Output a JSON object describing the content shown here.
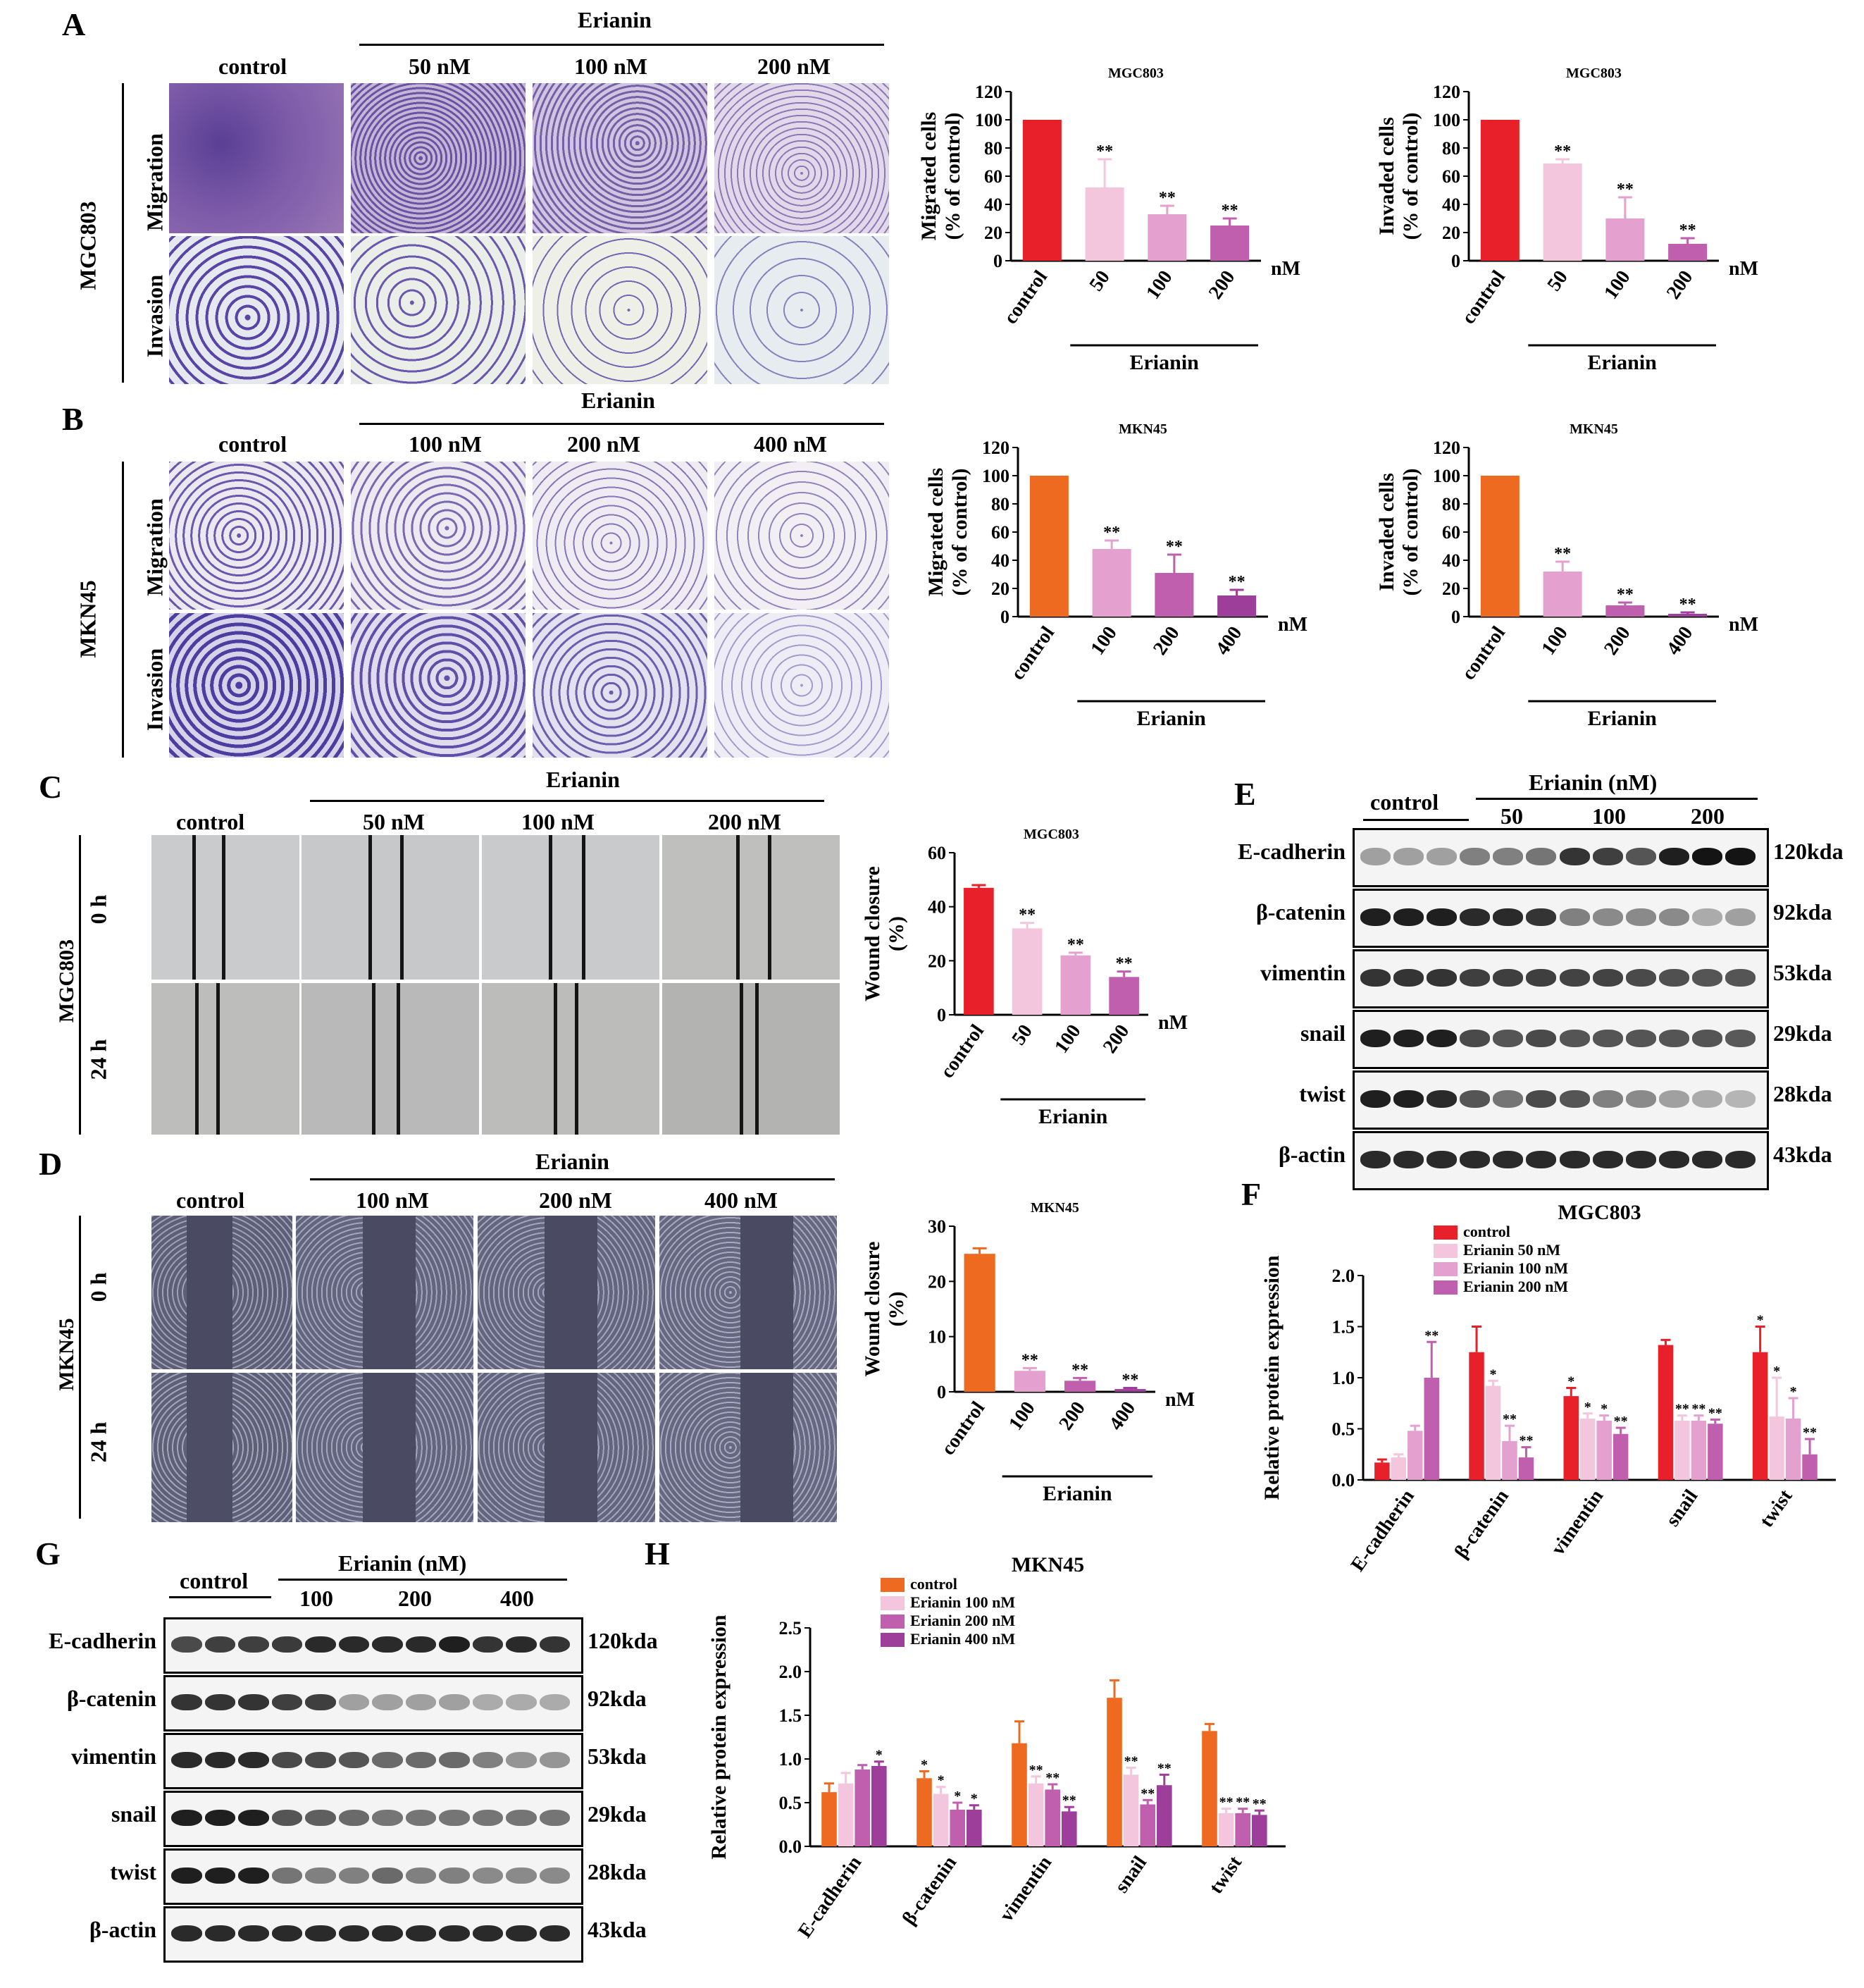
{
  "panels": {
    "A": "A",
    "B": "B",
    "C": "C",
    "D": "D",
    "E": "E",
    "F": "F",
    "G": "G",
    "H": "H"
  },
  "common": {
    "erianin": "Erianin",
    "control": "control",
    "nM": "nM",
    "migration": "Migration",
    "invasion": "Invasion",
    "h0": "0 h",
    "h24": "24 h",
    "erianin_nM": "Erianin (nM)"
  },
  "cells": {
    "mgc": "MGC803",
    "mkn": "MKN45"
  },
  "doses_A": [
    "50 nM",
    "100 nM",
    "200 nM"
  ],
  "doses_B": [
    "100 nM",
    "200 nM",
    "400 nM"
  ],
  "blots": {
    "proteins": [
      "E-cadherin",
      "β-catenin",
      "vimentin",
      "snail",
      "twist",
      "β-actin"
    ],
    "sizes": [
      "120kda",
      "92kda",
      "53kda",
      "29kda",
      "28kda",
      "43kda"
    ],
    "E_doses": [
      "50",
      "100",
      "200"
    ],
    "G_doses": [
      "100",
      "200",
      "400"
    ]
  },
  "colors": {
    "red": "#e8202a",
    "orange": "#ef6a21",
    "pink1": "#f3c6de",
    "pink2": "#e4a0cf",
    "pink3": "#c05fae",
    "purple": "#9c3e9a"
  },
  "chart_data": [
    {
      "id": "A-migration",
      "type": "bar",
      "title": "MGC803",
      "ylabel": "Migrated cells (% of control)",
      "categories": [
        "control",
        "50",
        "100",
        "200"
      ],
      "values": [
        100,
        52,
        33,
        25
      ],
      "errors": [
        0,
        20,
        6,
        5
      ],
      "sig": [
        "",
        "**",
        "**",
        "**"
      ],
      "ylim": [
        0,
        120
      ],
      "yticks": [
        0,
        20,
        40,
        60,
        80,
        100,
        120
      ],
      "xgroup": "Erianin",
      "unit": "nM",
      "colors": [
        "#e8202a",
        "#f3c6de",
        "#e4a0cf",
        "#c05fae"
      ]
    },
    {
      "id": "A-invasion",
      "type": "bar",
      "title": "MGC803",
      "ylabel": "Invaded cells (% of control)",
      "categories": [
        "control",
        "50",
        "100",
        "200"
      ],
      "values": [
        100,
        69,
        30,
        12
      ],
      "errors": [
        0,
        3,
        15,
        4
      ],
      "sig": [
        "",
        "**",
        "**",
        "**"
      ],
      "ylim": [
        0,
        120
      ],
      "yticks": [
        0,
        20,
        40,
        60,
        80,
        100,
        120
      ],
      "xgroup": "Erianin",
      "unit": "nM",
      "colors": [
        "#e8202a",
        "#f3c6de",
        "#e4a0cf",
        "#c05fae"
      ]
    },
    {
      "id": "B-migration",
      "type": "bar",
      "title": "MKN45",
      "ylabel": "Migrated cells (% of control)",
      "categories": [
        "control",
        "100",
        "200",
        "400"
      ],
      "values": [
        100,
        48,
        31,
        15
      ],
      "errors": [
        0,
        6,
        13,
        4
      ],
      "sig": [
        "",
        "**",
        "**",
        "**"
      ],
      "ylim": [
        0,
        120
      ],
      "yticks": [
        0,
        20,
        40,
        60,
        80,
        100,
        120
      ],
      "xgroup": "Erianin",
      "unit": "nM",
      "colors": [
        "#ef6a21",
        "#e4a0cf",
        "#c05fae",
        "#9c3e9a"
      ]
    },
    {
      "id": "B-invasion",
      "type": "bar",
      "title": "MKN45",
      "ylabel": "Invaded cells (% of control)",
      "categories": [
        "control",
        "100",
        "200",
        "400"
      ],
      "values": [
        100,
        32,
        8,
        2
      ],
      "errors": [
        0,
        7,
        2,
        1
      ],
      "sig": [
        "",
        "**",
        "**",
        "**"
      ],
      "ylim": [
        0,
        120
      ],
      "yticks": [
        0,
        20,
        40,
        60,
        80,
        100,
        120
      ],
      "xgroup": "Erianin",
      "unit": "nM",
      "colors": [
        "#ef6a21",
        "#e4a0cf",
        "#c05fae",
        "#9c3e9a"
      ]
    },
    {
      "id": "C-wound",
      "type": "bar",
      "title": "MGC803",
      "ylabel": "Wound closure (%)",
      "categories": [
        "control",
        "50",
        "100",
        "200"
      ],
      "values": [
        47,
        32,
        22,
        14
      ],
      "errors": [
        1,
        2,
        1,
        2
      ],
      "sig": [
        "",
        "**",
        "**",
        "**"
      ],
      "ylim": [
        0,
        60
      ],
      "yticks": [
        0,
        20,
        40,
        60
      ],
      "xgroup": "Erianin",
      "unit": "nM",
      "colors": [
        "#e8202a",
        "#f3c6de",
        "#e4a0cf",
        "#c05fae"
      ]
    },
    {
      "id": "D-wound",
      "type": "bar",
      "title": "MKN45",
      "ylabel": "Wound closure (%)",
      "categories": [
        "control",
        "100",
        "200",
        "400"
      ],
      "values": [
        25,
        3.8,
        2,
        0.5
      ],
      "errors": [
        1,
        0.5,
        0.5,
        0.2
      ],
      "sig": [
        "",
        "**",
        "**",
        "**"
      ],
      "ylim": [
        0,
        30
      ],
      "yticks": [
        0,
        10,
        20,
        30
      ],
      "xgroup": "Erianin",
      "unit": "nM",
      "colors": [
        "#ef6a21",
        "#e4a0cf",
        "#c05fae",
        "#9c3e9a"
      ]
    },
    {
      "id": "F-expr",
      "type": "grouped-bar",
      "title": "MGC803",
      "ylabel": "Relative protein expression",
      "categories": [
        "E-cadherin",
        "β-catenin",
        "vimentin",
        "snail",
        "twist"
      ],
      "ylim": [
        0,
        2.0
      ],
      "yticks": [
        0.0,
        0.5,
        1.0,
        1.5,
        2.0
      ],
      "series": [
        {
          "name": "control",
          "color": "#e8202a",
          "values": [
            0.17,
            1.25,
            0.82,
            1.32,
            1.25
          ],
          "errors": [
            0.03,
            0.25,
            0.08,
            0.05,
            0.25
          ],
          "sig": [
            "",
            "",
            "*",
            "",
            "*"
          ]
        },
        {
          "name": "Erianin 50 nM",
          "color": "#f3c6de",
          "values": [
            0.22,
            0.92,
            0.6,
            0.58,
            0.62
          ],
          "errors": [
            0.03,
            0.05,
            0.05,
            0.05,
            0.38
          ],
          "sig": [
            "",
            "*",
            "*",
            "**",
            "*"
          ]
        },
        {
          "name": "Erianin 100 nM",
          "color": "#e4a0cf",
          "values": [
            0.48,
            0.38,
            0.58,
            0.58,
            0.6
          ],
          "errors": [
            0.05,
            0.15,
            0.05,
            0.05,
            0.2
          ],
          "sig": [
            "",
            "**",
            "*",
            "**",
            "*"
          ]
        },
        {
          "name": "Erianin 200 nM",
          "color": "#c05fae",
          "values": [
            1.0,
            0.22,
            0.45,
            0.55,
            0.25
          ],
          "errors": [
            0.35,
            0.1,
            0.06,
            0.04,
            0.15
          ],
          "sig": [
            "**",
            "**",
            "**",
            "**",
            "**"
          ]
        }
      ]
    },
    {
      "id": "H-expr",
      "type": "grouped-bar",
      "title": "MKN45",
      "ylabel": "Relative protein expression",
      "categories": [
        "E-cadherin",
        "β-catenin",
        "vimentin",
        "snail",
        "twist"
      ],
      "ylim": [
        0,
        2.5
      ],
      "yticks": [
        0.0,
        0.5,
        1.0,
        1.5,
        2.0,
        2.5
      ],
      "series": [
        {
          "name": "control",
          "color": "#ef6a21",
          "values": [
            0.62,
            0.78,
            1.18,
            1.7,
            1.32
          ],
          "errors": [
            0.1,
            0.08,
            0.25,
            0.2,
            0.08
          ],
          "sig": [
            "",
            "*",
            "",
            "",
            ""
          ]
        },
        {
          "name": "Erianin 100 nM",
          "color": "#f3c6de",
          "values": [
            0.72,
            0.6,
            0.72,
            0.82,
            0.38
          ],
          "errors": [
            0.12,
            0.08,
            0.08,
            0.08,
            0.05
          ],
          "sig": [
            "",
            "*",
            "**",
            "**",
            "**"
          ]
        },
        {
          "name": "Erianin 200 nM",
          "color": "#c05fae",
          "values": [
            0.88,
            0.42,
            0.65,
            0.48,
            0.38
          ],
          "errors": [
            0.05,
            0.08,
            0.06,
            0.05,
            0.05
          ],
          "sig": [
            "",
            "*",
            "**",
            "**",
            "**"
          ]
        },
        {
          "name": "Erianin 400 nM",
          "color": "#9c3e9a",
          "values": [
            0.92,
            0.42,
            0.4,
            0.7,
            0.36
          ],
          "errors": [
            0.05,
            0.05,
            0.05,
            0.12,
            0.05
          ],
          "sig": [
            "*",
            "*",
            "**",
            "**",
            "**"
          ]
        }
      ]
    }
  ]
}
